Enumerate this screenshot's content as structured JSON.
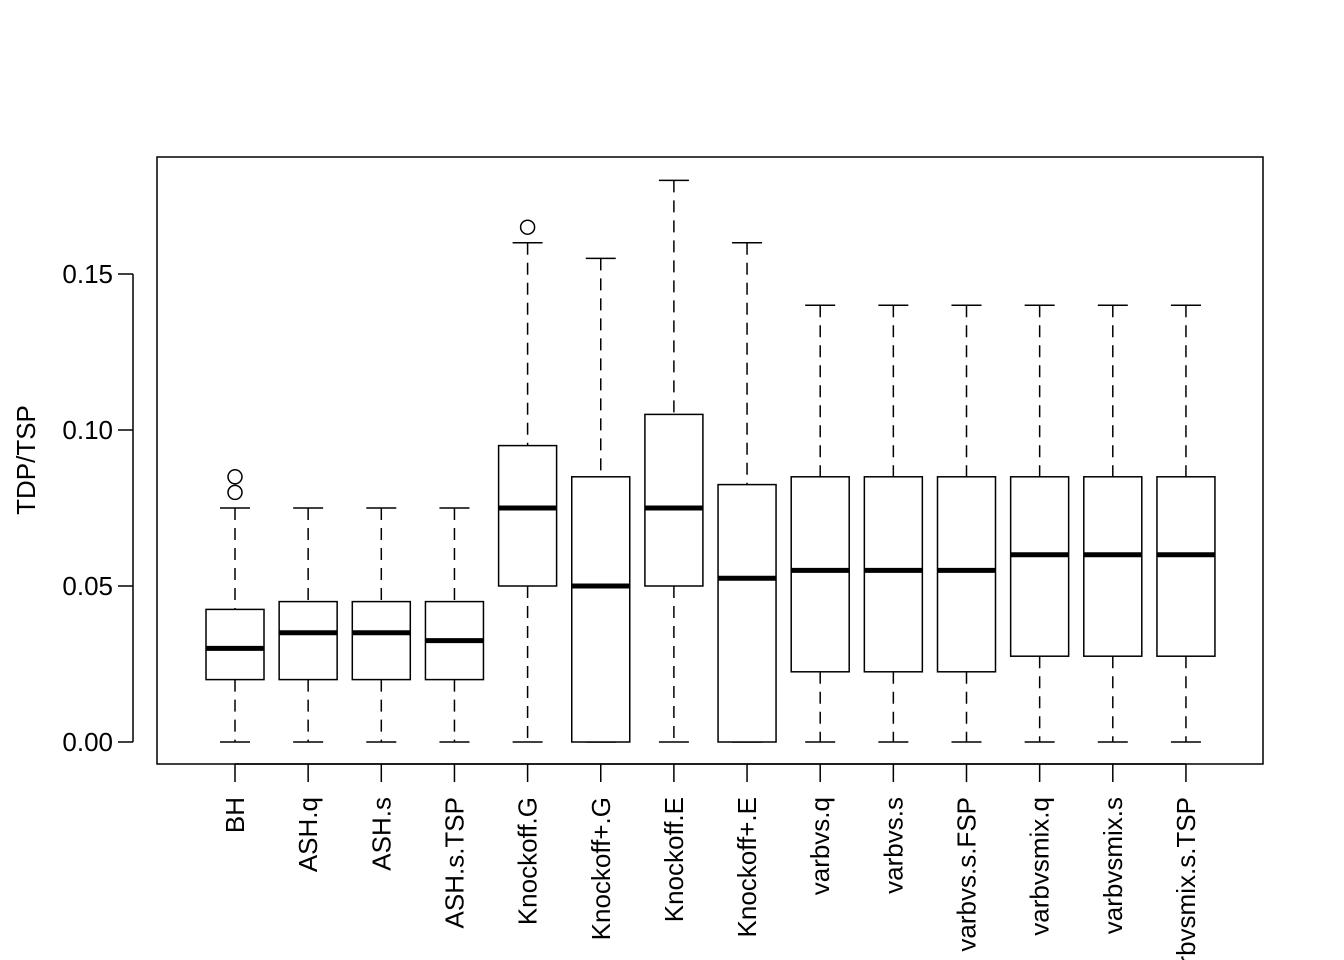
{
  "chart_data": {
    "type": "boxplot",
    "title": "",
    "xlabel": "",
    "ylabel": "TDP/TSP",
    "ylim": [
      -0.007,
      0.1875
    ],
    "yticks": [
      0.0,
      0.05,
      0.1,
      0.15
    ],
    "ytick_labels": [
      "0.00",
      "0.05",
      "0.10",
      "0.15"
    ],
    "grid": false,
    "categories": [
      "BH",
      "ASH.q",
      "ASH.s",
      "ASH.s.TSP",
      "Knockoff.G",
      "Knockoff+.G",
      "Knockoff.E",
      "Knockoff+.E",
      "varbvs.q",
      "varbvs.s",
      "varbvs.s.FSP",
      "varbvsmix.q",
      "varbvsmix.s",
      "varbvsmix.s.TSP"
    ],
    "boxes": [
      {
        "min": 0,
        "q1": 0.02,
        "median": 0.03,
        "q3": 0.0425,
        "max": 0.075,
        "outliers": [
          0.08,
          0.085
        ]
      },
      {
        "min": 0,
        "q1": 0.02,
        "median": 0.035,
        "q3": 0.045,
        "max": 0.075,
        "outliers": []
      },
      {
        "min": 0,
        "q1": 0.02,
        "median": 0.035,
        "q3": 0.045,
        "max": 0.075,
        "outliers": []
      },
      {
        "min": 0,
        "q1": 0.02,
        "median": 0.0325,
        "q3": 0.045,
        "max": 0.075,
        "outliers": []
      },
      {
        "min": 0,
        "q1": 0.05,
        "median": 0.075,
        "q3": 0.095,
        "max": 0.16,
        "outliers": [
          0.165
        ]
      },
      {
        "min": 0,
        "q1": 0,
        "median": 0.05,
        "q3": 0.085,
        "max": 0.155,
        "outliers": []
      },
      {
        "min": 0,
        "q1": 0.05,
        "median": 0.075,
        "q3": 0.105,
        "max": 0.18,
        "outliers": []
      },
      {
        "min": 0,
        "q1": 0,
        "median": 0.0525,
        "q3": 0.0825,
        "max": 0.16,
        "outliers": []
      },
      {
        "min": 0,
        "q1": 0.0225,
        "median": 0.055,
        "q3": 0.085,
        "max": 0.14,
        "outliers": []
      },
      {
        "min": 0,
        "q1": 0.0225,
        "median": 0.055,
        "q3": 0.085,
        "max": 0.14,
        "outliers": []
      },
      {
        "min": 0,
        "q1": 0.0225,
        "median": 0.055,
        "q3": 0.085,
        "max": 0.14,
        "outliers": []
      },
      {
        "min": 0,
        "q1": 0.0275,
        "median": 0.06,
        "q3": 0.085,
        "max": 0.14,
        "outliers": []
      },
      {
        "min": 0,
        "q1": 0.0275,
        "median": 0.06,
        "q3": 0.085,
        "max": 0.14,
        "outliers": []
      },
      {
        "min": 0,
        "q1": 0.0275,
        "median": 0.06,
        "q3": 0.085,
        "max": 0.14,
        "outliers": []
      }
    ],
    "colors": {
      "box_fill": "#ffffff",
      "stroke": "#000000"
    }
  }
}
